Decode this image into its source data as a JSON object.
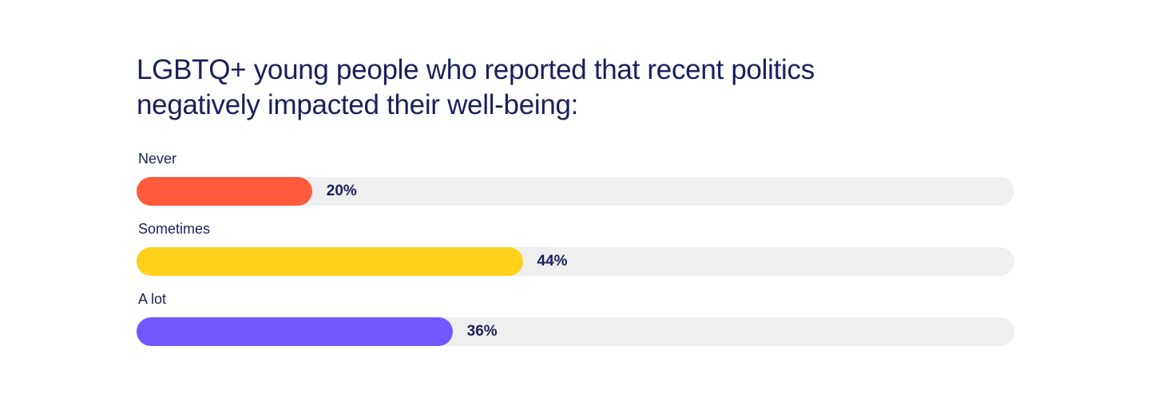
{
  "chart_data": {
    "type": "bar",
    "orientation": "horizontal",
    "title": "LGBTQ+ young people who reported that recent politics negatively impacted their well-being:",
    "categories": [
      "Never",
      "Sometimes",
      "A lot"
    ],
    "values": [
      20,
      44,
      36
    ],
    "value_labels": [
      "20%",
      "44%",
      "36%"
    ],
    "unit": "%",
    "xlim": [
      0,
      100
    ],
    "grid": false,
    "legend": "none",
    "colors": [
      "#ff5a3c",
      "#ffd11a",
      "#7257ff"
    ],
    "track_color": "#efefef",
    "text_color": "#1b1f5c"
  }
}
